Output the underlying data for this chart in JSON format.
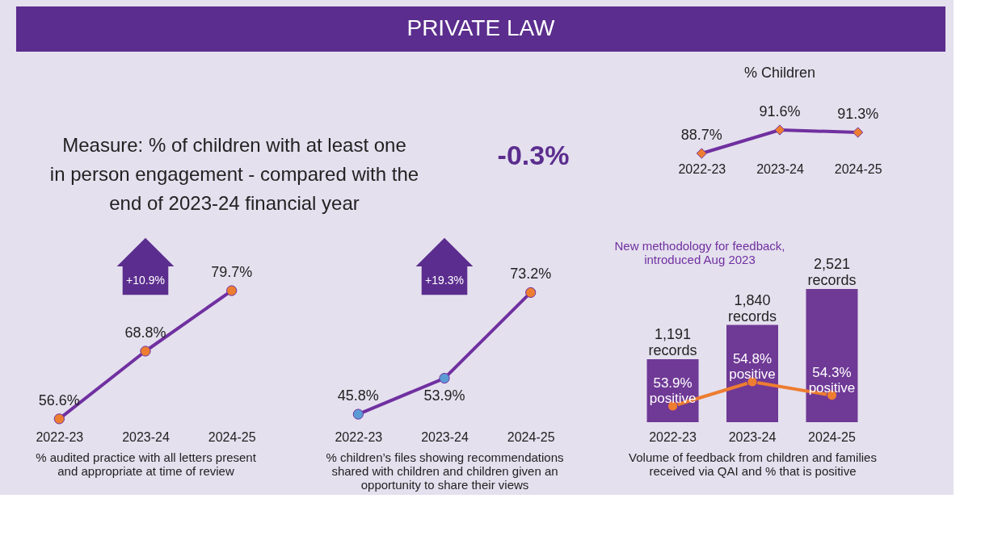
{
  "chart_data": [
    {
      "type": "other",
      "title": "PRIVATE LAW",
      "subtitle": "Measure: % of children with at least one in person engagement - compared with the end of 2023-24 financial year",
      "annotations": [
        "-0.3%"
      ]
    },
    {
      "type": "line",
      "title": "% Children",
      "categories": [
        "2022-23",
        "2023-24",
        "2024-25"
      ],
      "series": [
        {
          "color": "#7030a0",
          "colors": [
            "#ed7d31",
            "#ed7d31",
            "#ed7d31"
          ],
          "values": [
            88.7,
            91.6,
            91.3
          ],
          "value_labels": [
            "88.7%",
            "91.6%",
            "91.3%"
          ]
        }
      ],
      "marker": "diamond",
      "tick_labels": "x"
    },
    {
      "type": "line",
      "xlabel": "% audited practice with all letters present and appropriate at time of review",
      "categories": [
        "2022-23",
        "2023-24",
        "2024-25"
      ],
      "series": [
        {
          "color": "#7030a0",
          "colors": [
            "#ed7d31",
            "#ed7d31",
            "#ed7d31"
          ],
          "values": [
            56.6,
            68.8,
            79.7
          ],
          "value_labels": [
            "56.6%",
            "68.8%",
            "79.7%"
          ]
        }
      ],
      "marker": "circle",
      "tick_labels": "x",
      "annotations": [
        "+10.9%"
      ]
    },
    {
      "type": "line",
      "xlabel": "% children’s files showing recommendations shared with children and children given an opportunity to share their views",
      "categories": [
        "2022-23",
        "2023-24",
        "2024-25"
      ],
      "series": [
        {
          "color": "#7030a0",
          "colors": [
            "#5b9bd5",
            "#5b9bd5",
            "#ed7d31"
          ],
          "values": [
            45.8,
            53.9,
            73.2
          ],
          "value_labels": [
            "45.8%",
            "53.9%",
            "73.2%"
          ]
        }
      ],
      "marker": "circle",
      "tick_labels": "x",
      "annotations": [
        "+19.3%"
      ]
    },
    {
      "type": "bar",
      "xlabel": "Volume of feedback from children and families received via QAI and % that is positive",
      "categories": [
        "2022-23",
        "2023-24",
        "2024-25"
      ],
      "series": [
        {
          "type": "bar",
          "color": "#6f3996",
          "values": [
            1191,
            1840,
            2521
          ],
          "value_labels": [
            "1,191 records",
            "1,840 records",
            "2,521 records"
          ]
        },
        {
          "type": "line",
          "axis": "y2",
          "color": "#ed7d31",
          "values": [
            53.9,
            54.8,
            54.3
          ],
          "value_labels": [
            "53.9% positive",
            "54.8% positive",
            "54.3% positive"
          ]
        }
      ],
      "marker": "circle",
      "tick_labels": "x",
      "annotations": [
        "New methodology for feedback, introduced Aug 2023"
      ]
    }
  ]
}
